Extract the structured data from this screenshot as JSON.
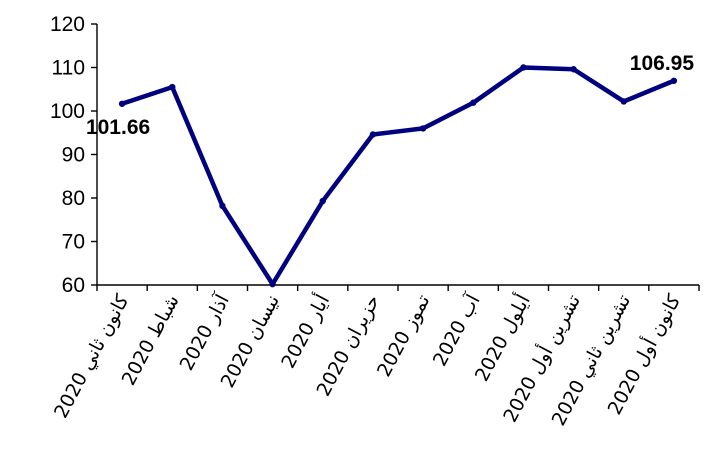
{
  "chart_data": {
    "type": "line",
    "categories": [
      "كانون ثاني 2020",
      "شباط 2020",
      "آذار 2020",
      "نيسان 2020",
      "أيار 2020",
      "حزيران 2020",
      "تموز 2020",
      "آب 2020",
      "أيلول 2020",
      "تشرين أول 2020",
      "تشرين ثاني 2020",
      "كانون أول 2020"
    ],
    "series": [
      {
        "values": [
          101.66,
          105.5,
          78.2,
          60.2,
          79.3,
          94.6,
          96.0,
          101.9,
          110.0,
          109.6,
          102.2,
          106.95
        ],
        "color": "#00007f"
      }
    ],
    "data_labels": [
      {
        "index": 0,
        "text": "101.66"
      },
      {
        "index": 11,
        "text": "106.95"
      }
    ],
    "y_ticks": [
      "60",
      "70",
      "80",
      "90",
      "100",
      "110",
      "120"
    ],
    "ylim": [
      60,
      120
    ],
    "grid": false,
    "legend": "none",
    "title": "",
    "xlabel": "",
    "ylabel": ""
  }
}
